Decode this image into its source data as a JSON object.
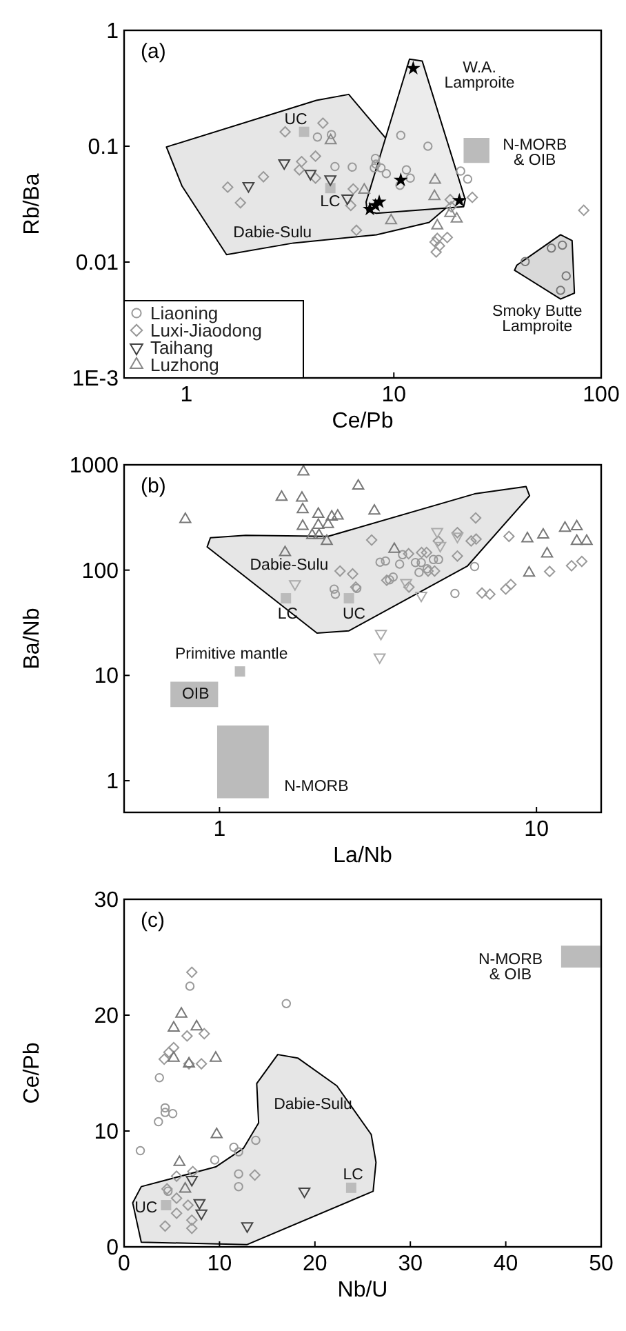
{
  "chart_data": [
    {
      "type": "scatter",
      "xlabel": "Ce/Pb",
      "ylabel": "Rb/Ba",
      "log": "xy",
      "xlim": [
        0.5,
        100
      ],
      "xticks": [
        1,
        10,
        100
      ],
      "ylim": [
        0.001,
        1
      ],
      "yticks": [
        {
          "value": 0.001,
          "label": "1E-3"
        },
        0.01,
        0.1,
        1
      ],
      "legend": "bottom left",
      "grid": false,
      "annotations": [
        "(a)",
        "UC",
        "LC",
        "W.A.\nLamproite",
        "N-MORB\n& OIB",
        "Dabie-Sulu",
        "Smoky Butte\nLamproite"
      ],
      "series": [
        {
          "type": "area",
          "color": "#e6e6e6",
          "line_style": "solid",
          "x": [
            0.8,
            0.95,
            1.56,
            3.28,
            8.24,
            14.8,
            17.7,
            6.06,
            4.23
          ],
          "values": [
            0.0985,
            0.0455,
            0.0116,
            0.0146,
            0.0172,
            0.022,
            0.0289,
            0.28,
            0.249
          ]
        },
        {
          "type": "area",
          "color": "#ececec",
          "line_style": "solid",
          "x": [
            11.9,
            13.7,
            22.1,
            21.7,
            8.24,
            7.43,
            7.35
          ],
          "values": [
            0.564,
            0.544,
            0.0346,
            0.03,
            0.0264,
            0.0276,
            0.033
          ]
        },
        {
          "type": "area",
          "color": "#d9d9d9",
          "line_style": "solid",
          "x": [
            39.2,
            63.7,
            72.4,
            74.3,
            63.7,
            38.2
          ],
          "values": [
            0.0094,
            0.0172,
            0.0153,
            0.0054,
            0.0048,
            0.0085
          ]
        },
        {
          "type": "area",
          "color": "#bbbbbb",
          "x": [
            21.7,
            28.9,
            28.9,
            21.7
          ],
          "values": [
            0.0717,
            0.0717,
            0.118,
            0.118
          ]
        },
        {
          "color": "#bbbbbb",
          "marker": "square",
          "x": [
            3.69,
            4.94
          ],
          "values": [
            0.133,
            0.0435
          ]
        },
        {
          "name": "Liaoning",
          "color": "#999999",
          "marker": "circle",
          "x": [
            4.28,
            5.0,
            5.2,
            6.3,
            8.15,
            8.2,
            8.05,
            8.67,
            9.2,
            10.8,
            11.5,
            12.0,
            10.7,
            14.6,
            21,
            22.7
          ],
          "values": [
            0.12,
            0.126,
            0.0667,
            0.066,
            0.0785,
            0.07,
            0.065,
            0.065,
            0.058,
            0.124,
            0.0625,
            0.053,
            0.046,
            0.1,
            0.061,
            0.052
          ]
        },
        {
          "name": "Luxi-Jiaodong",
          "color": "#999999",
          "marker": "diamond",
          "x": [
            1.58,
            1.82,
            2.35,
            2.99,
            3.59,
            3.5,
            4.19,
            4.19,
            4.55,
            6.37,
            6.2,
            6.6,
            18.7,
            18.9,
            23.9,
            16.2,
            15.8,
            16.0,
            16.6,
            18.1,
            82.4
          ],
          "values": [
            0.0443,
            0.0325,
            0.0545,
            0.133,
            0.0736,
            0.0625,
            0.082,
            0.053,
            0.158,
            0.0427,
            0.0308,
            0.0188,
            0.0346,
            0.03,
            0.0362,
            0.016,
            0.0149,
            0.0122,
            0.0138,
            0.0163,
            0.028
          ]
        },
        {
          "name": "Taihang",
          "color": "#444444",
          "marker": "triangle-down",
          "x": [
            1.99,
            2.96,
            3.96,
            4.94,
            5.97
          ],
          "values": [
            0.0455,
            0.0716,
            0.058,
            0.052,
            0.0356
          ]
        },
        {
          "name": "Luzhong",
          "color": "#888888",
          "marker": "triangle",
          "x": [
            4.96,
            7.2,
            9.7,
            15.8,
            15.7,
            16.2,
            18.7,
            20.1
          ],
          "values": [
            0.112,
            0.0419,
            0.0228,
            0.051,
            0.0369,
            0.0206,
            0.0264,
            0.0236
          ]
        },
        {
          "color": "#000000",
          "marker": "star",
          "x": [
            12.4,
            10.8,
            8.5,
            8.15,
            7.66,
            20.7
          ],
          "values": [
            0.47,
            0.051,
            0.033,
            0.0308,
            0.0286,
            0.034
          ]
        },
        {
          "color": "#777777",
          "marker": "circle",
          "x": [
            43,
            57.5,
            65,
            67.8,
            63.7
          ],
          "values": [
            0.0101,
            0.0132,
            0.014,
            0.0076,
            0.0057
          ]
        }
      ]
    },
    {
      "type": "scatter",
      "xlabel": "La/Nb",
      "ylabel": "Ba/Nb",
      "log": "xy",
      "xlim": [
        0.5,
        16
      ],
      "xticks": [
        1,
        10
      ],
      "ylim": [
        0.5,
        1000
      ],
      "yticks": [
        1,
        10,
        100,
        1000
      ],
      "grid": false,
      "annotations": [
        "(b)",
        "Dabie-Sulu",
        "LC",
        "UC",
        "Primitive mantle",
        "OIB",
        "N-MORB"
      ],
      "series": [
        {
          "type": "area",
          "color": "#e6e6e6",
          "line_style": "solid",
          "x": [
            0.936,
            0.914,
            2.03,
            2.56,
            6.05,
            9.51,
            9.27,
            6.38,
            2.2,
            1.21
          ],
          "values": [
            203,
            166,
            25.2,
            26.5,
            109,
            509,
            622,
            530,
            209,
            214
          ]
        },
        {
          "type": "area",
          "color": "#bbbbbb",
          "x": [
            0.7,
            0.99,
            0.99,
            0.7
          ],
          "values": [
            5.0,
            5.0,
            8.7,
            8.7
          ]
        },
        {
          "type": "area",
          "color": "#bbbbbb",
          "x": [
            0.983,
            1.43,
            1.43,
            0.983
          ],
          "values": [
            0.68,
            0.68,
            3.35,
            3.35
          ]
        },
        {
          "color": "#bbbbbb",
          "marker": "square",
          "x": [
            2.56,
            1.62,
            1.16
          ],
          "values": [
            54,
            54,
            10.9
          ]
        },
        {
          "color": "#999999",
          "marker": "circle",
          "x": [
            2.3,
            2.32,
            2.71,
            3.21,
            3.34,
            3.7,
            3.78,
            4.15,
            4.33,
            4.26,
            4.52,
            4.73,
            4.91,
            5.53,
            6.38,
            3.44,
            3.53
          ],
          "values": [
            66,
            59,
            67,
            119,
            122,
            114,
            140,
            118,
            118,
            95,
            103,
            126,
            126,
            60,
            108,
            81,
            86
          ]
        },
        {
          "color": "#999999",
          "marker": "diamond",
          "x": [
            3.02,
            2.4,
            2.63,
            2.69,
            3.37,
            3.96,
            3.95,
            4.34,
            4.5,
            4.55,
            4.77,
            4.9,
            5.63,
            5.63,
            6.22,
            6.43,
            6.45,
            6.73,
            7.13,
            8.0,
            8.3,
            8.19,
            11.0,
            12.9,
            13.9
          ],
          "values": [
            193,
            98,
            92,
            69,
            80,
            69,
            143,
            147,
            147,
            98,
            98,
            189,
            227,
            136,
            189,
            313,
            197,
            60.5,
            59,
            66,
            73,
            209,
            97,
            110,
            121
          ]
        },
        {
          "color": "#aaaaaa",
          "marker": "triangle-down",
          "x": [
            1.73,
            4.86,
            4.97,
            3.88,
            4.33,
            3.23,
            3.2,
            5.63
          ],
          "values": [
            74,
            232,
            171,
            76,
            57.5,
            25,
            14.9,
            209
          ]
        },
        {
          "color": "#777777",
          "marker": "triangle",
          "x": [
            0.78,
            1.84,
            1.57,
            1.82,
            1.83,
            1.83,
            2.05,
            2.05,
            2.26,
            2.2,
            1.96,
            2.06,
            2.18,
            2.74,
            3.08,
            3.56,
            1.61,
            2.36,
            9.36,
            10.5,
            12.3,
            13.4,
            13.4,
            14.4,
            10.8,
            9.48
          ],
          "values": [
            304,
            859,
            493,
            484,
            376,
            261,
            340,
            267,
            320,
            272,
            214,
            214,
            188,
            630,
            365,
            158,
            147,
            327,
            199,
            216,
            251,
            259,
            188,
            188,
            143,
            94
          ]
        }
      ]
    },
    {
      "type": "scatter",
      "xlabel": "Nb/U",
      "ylabel": "Ce/Pb",
      "xlim": [
        0,
        50
      ],
      "xticks": [
        0,
        10,
        20,
        30,
        40,
        50
      ],
      "ylim": [
        0,
        30
      ],
      "yticks": [
        0,
        10,
        20,
        30
      ],
      "grid": false,
      "annotations": [
        "(c)",
        "Dabie-Sulu",
        "LC",
        "UC",
        "N-MORB\n& OIB"
      ],
      "series": [
        {
          "type": "area",
          "color": "#e6e6e6",
          "line_style": "solid",
          "x": [
            1.8,
            0.9,
            1.8,
            12.9,
            26.1,
            26.4,
            25.9,
            22.3,
            18.2,
            16.1,
            13.9,
            14.1,
            12.5,
            9.6
          ],
          "values": [
            5.2,
            3.8,
            0.4,
            0.2,
            4.8,
            7.3,
            9.7,
            13.9,
            16.3,
            16.6,
            14.1,
            10.7,
            8.5,
            6.9
          ]
        },
        {
          "type": "area",
          "color": "#bbbbbb",
          "x": [
            45.8,
            49.9,
            49.9,
            45.8
          ],
          "values": [
            24.1,
            24.1,
            26.0,
            26.0
          ]
        },
        {
          "color": "#bbbbbb",
          "marker": "square",
          "x": [
            4.4,
            23.8
          ],
          "values": [
            3.6,
            5.1
          ]
        },
        {
          "color": "#999999",
          "marker": "circle",
          "x": [
            1.7,
            3.7,
            3.6,
            4.3,
            4.3,
            5.1,
            6.9,
            17.0,
            9.5,
            11.5,
            12.0,
            12.0,
            12.0,
            13.8,
            4.6
          ],
          "values": [
            8.3,
            14.6,
            10.8,
            12.0,
            11.6,
            11.5,
            22.5,
            21.0,
            7.5,
            8.6,
            8.2,
            6.3,
            5.2,
            9.2,
            4.8
          ]
        },
        {
          "color": "#999999",
          "marker": "diamond",
          "x": [
            7.1,
            6.6,
            8.4,
            5.2,
            4.7,
            4.2,
            6.8,
            8.1,
            7.2,
            13.7,
            5.5,
            4.5,
            5.5,
            6.7,
            5.5,
            7.1,
            4.3,
            7.1
          ],
          "values": [
            23.7,
            18.2,
            18.4,
            17.2,
            16.8,
            16.2,
            15.8,
            15.8,
            6.5,
            6.2,
            6.1,
            5.0,
            4.2,
            3.6,
            2.9,
            2.3,
            1.8,
            1.6
          ]
        },
        {
          "color": "#777777",
          "marker": "triangle",
          "x": [
            6.0,
            5.2,
            7.6,
            5.2,
            6.8,
            9.6,
            9.7,
            5.8,
            6.4
          ],
          "values": [
            20.1,
            18.9,
            19.0,
            16.3,
            15.8,
            16.3,
            9.7,
            7.3,
            5.0
          ]
        },
        {
          "color": "#444444",
          "marker": "triangle-down",
          "x": [
            7.1,
            7.9,
            8.1,
            12.9,
            18.9
          ],
          "values": [
            5.8,
            3.8,
            2.9,
            1.8,
            4.8
          ]
        }
      ]
    }
  ]
}
